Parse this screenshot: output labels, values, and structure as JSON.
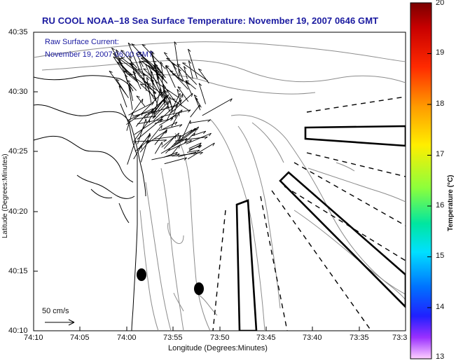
{
  "title": "RU COOL  NOAA–18  Sea Surface Temperature:  November 19, 2007 0646 GMT",
  "current_note": {
    "line1": "Raw Surface Current:",
    "line2": "November 19, 2007 06:00 GMT"
  },
  "axes": {
    "xlabel": "Longitude (Degrees:Minutes)",
    "ylabel": "Latitude (Degrees:Minutes)",
    "x_ticks": [
      "74:10",
      "74:05",
      "74:00",
      "73:55",
      "73:50",
      "73:45",
      "73:40",
      "73:35",
      "73:3"
    ],
    "y_ticks": [
      "40:35",
      "40:30",
      "40:25",
      "40:20",
      "40:15",
      "40:10"
    ]
  },
  "colorbar": {
    "label": "Temperature (°C)",
    "ticks": [
      "20",
      "19",
      "18",
      "17",
      "16",
      "15",
      "14",
      "13"
    ]
  },
  "scale_label": "50 cm/s",
  "colors": {
    "title": "#1a1aa0",
    "map_lines": "#000000",
    "bathymetry": "#888888"
  }
}
